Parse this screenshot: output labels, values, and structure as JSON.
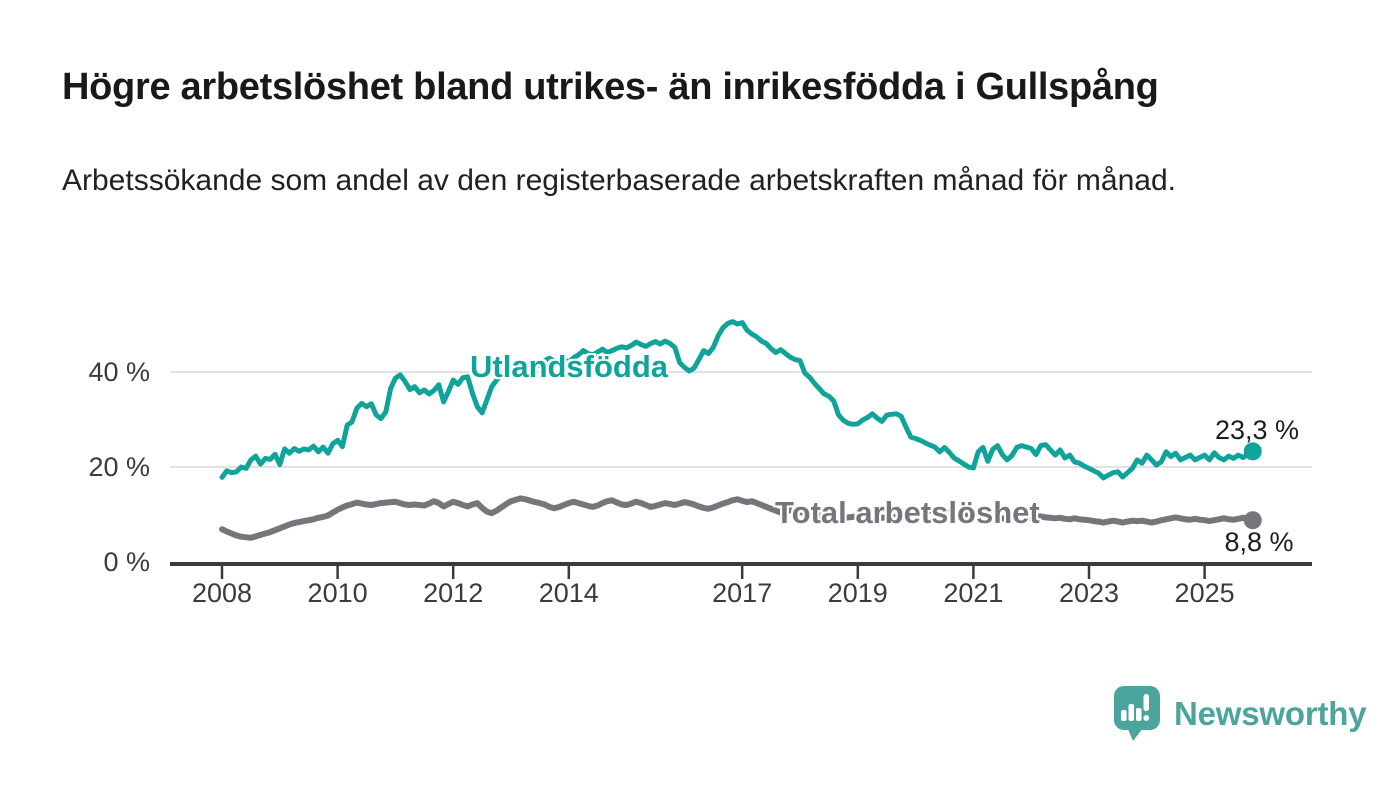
{
  "chart_data": {
    "type": "line",
    "title": "Högre arbetslöshet bland utrikes- än inrikesfödda i Gullspång",
    "subtitle": "Arbetssökande som andel av den registerbaserade arbetskraften månad för månad.",
    "unit": "%",
    "grid": "horizontal",
    "legend_position": "inline-labels",
    "x_axis": {
      "start_year": 2008,
      "points_per_year": 12,
      "end_point": "2025-11",
      "tick_years": [
        2008,
        2010,
        2012,
        2014,
        2017,
        2019,
        2021,
        2023,
        2025
      ],
      "tick_labels": [
        "2008",
        "2010",
        "2012",
        "2014",
        "2017",
        "2019",
        "2021",
        "2023",
        "2025"
      ]
    },
    "y_axis": {
      "range": [
        0,
        55
      ],
      "ticks": [
        {
          "value": 0,
          "label": "0 %"
        },
        {
          "value": 20,
          "label": "20 %"
        },
        {
          "value": 40,
          "label": "40 %"
        }
      ]
    },
    "series": [
      {
        "name": "Utlandsfödda",
        "color": "#0fa39a",
        "end_label": "23,3 %",
        "end_value": 23.3,
        "values": [
          17.8,
          19.2,
          18.8,
          19.0,
          20.0,
          19.7,
          21.5,
          22.3,
          20.6,
          21.8,
          21.6,
          22.7,
          20.5,
          23.8,
          22.9,
          23.9,
          23.3,
          23.8,
          23.6,
          24.4,
          23.2,
          24.2,
          22.9,
          24.9,
          25.6,
          24.3,
          28.8,
          29.5,
          32.4,
          33.4,
          32.7,
          33.3,
          31.0,
          30.2,
          31.6,
          36.5,
          38.7,
          39.4,
          38.0,
          36.3,
          36.9,
          35.6,
          36.2,
          35.4,
          36.1,
          37.3,
          33.7,
          35.9,
          38.3,
          37.4,
          38.8,
          39.0,
          35.5,
          32.7,
          31.4,
          34.1,
          36.9,
          38.3,
          39.4,
          39.7,
          40.4,
          40.8,
          40.2,
          41.3,
          41.6,
          41.0,
          41.8,
          42.4,
          42.9,
          42.3,
          42.0,
          42.5,
          42.1,
          43.0,
          43.6,
          44.5,
          43.9,
          43.6,
          44.2,
          44.8,
          44.1,
          44.5,
          45.0,
          45.3,
          45.1,
          45.6,
          46.3,
          45.8,
          45.4,
          46.0,
          46.4,
          45.9,
          46.5,
          46.0,
          45.2,
          42.0,
          41.0,
          40.2,
          40.8,
          42.6,
          44.5,
          43.9,
          45.2,
          47.6,
          49.3,
          50.2,
          50.6,
          50.1,
          50.4,
          48.8,
          48.0,
          47.4,
          46.5,
          46.0,
          44.9,
          44.1,
          44.7,
          43.9,
          43.1,
          42.6,
          42.4,
          39.8,
          38.9,
          37.6,
          36.5,
          35.4,
          34.9,
          33.9,
          31.0,
          29.8,
          29.2,
          29.0,
          29.1,
          29.9,
          30.4,
          31.2,
          30.3,
          29.6,
          30.9,
          31.1,
          31.2,
          30.7,
          28.4,
          26.3,
          26.0,
          25.6,
          25.1,
          24.6,
          24.2,
          23.2,
          24.1,
          23.1,
          21.9,
          21.3,
          20.6,
          20.0,
          19.8,
          23.2,
          24.1,
          21.2,
          23.7,
          24.5,
          22.6,
          21.5,
          22.4,
          24.1,
          24.5,
          24.2,
          23.9,
          22.6,
          24.5,
          24.7,
          23.6,
          22.5,
          23.6,
          21.9,
          22.5,
          21.1,
          20.8,
          20.2,
          19.7,
          19.2,
          18.7,
          17.7,
          18.3,
          18.8,
          19.0,
          17.9,
          18.8,
          19.7,
          21.5,
          20.8,
          22.5,
          21.5,
          20.4,
          21.1,
          23.2,
          22.2,
          22.9,
          21.5,
          22.0,
          22.5,
          21.5,
          22.0,
          22.5,
          21.5,
          23.0,
          22.0,
          21.5,
          22.3,
          21.8,
          22.5,
          22.0,
          22.7,
          23.3
        ]
      },
      {
        "name": "Total arbetslöshet",
        "color": "#75757b",
        "end_label": "8,8 %",
        "end_value": 8.8,
        "values": [
          6.9,
          6.4,
          6.0,
          5.6,
          5.3,
          5.2,
          5.1,
          5.4,
          5.7,
          6.0,
          6.3,
          6.7,
          7.1,
          7.5,
          7.9,
          8.2,
          8.4,
          8.6,
          8.8,
          9.0,
          9.3,
          9.5,
          9.8,
          10.4,
          11.0,
          11.5,
          11.9,
          12.2,
          12.5,
          12.3,
          12.1,
          12.0,
          12.2,
          12.4,
          12.5,
          12.6,
          12.7,
          12.4,
          12.1,
          12.0,
          12.1,
          12.0,
          11.9,
          12.3,
          12.8,
          12.4,
          11.7,
          12.2,
          12.7,
          12.4,
          12.0,
          11.7,
          12.1,
          12.4,
          11.4,
          10.6,
          10.3,
          10.8,
          11.5,
          12.2,
          12.8,
          13.1,
          13.4,
          13.2,
          12.9,
          12.6,
          12.4,
          12.1,
          11.6,
          11.3,
          11.6,
          12.0,
          12.4,
          12.7,
          12.4,
          12.1,
          11.8,
          11.6,
          11.9,
          12.4,
          12.8,
          13.0,
          12.5,
          12.1,
          12.0,
          12.3,
          12.7,
          12.4,
          12.0,
          11.6,
          11.8,
          12.1,
          12.4,
          12.2,
          12.0,
          12.3,
          12.6,
          12.4,
          12.1,
          11.7,
          11.4,
          11.2,
          11.5,
          11.9,
          12.3,
          12.6,
          13.0,
          13.2,
          12.9,
          12.6,
          12.8,
          12.4,
          12.0,
          11.6,
          11.2,
          10.8,
          10.4,
          10.6,
          10.9,
          10.7,
          10.5,
          10.3,
          10.1,
          10.0,
          9.8,
          9.7,
          9.6,
          9.5,
          9.4,
          9.3,
          9.4,
          9.5,
          9.6,
          9.5,
          9.4,
          9.3,
          9.2,
          9.3,
          9.4,
          9.5,
          9.4,
          9.3,
          9.5,
          9.8,
          10.0,
          10.2,
          10.5,
          10.8,
          10.9,
          10.8,
          10.6,
          10.5,
          10.4,
          10.2,
          10.0,
          9.9,
          9.8,
          9.7,
          9.6,
          9.5,
          9.4,
          9.3,
          9.2,
          9.1,
          9.0,
          9.1,
          9.2,
          9.1,
          9.6,
          9.5,
          9.6,
          9.4,
          9.3,
          9.2,
          9.3,
          9.1,
          9.0,
          9.2,
          9.0,
          8.9,
          8.8,
          8.6,
          8.5,
          8.3,
          8.5,
          8.7,
          8.5,
          8.3,
          8.5,
          8.7,
          8.6,
          8.7,
          8.5,
          8.3,
          8.5,
          8.8,
          9.0,
          9.2,
          9.4,
          9.2,
          9.0,
          8.9,
          9.1,
          8.9,
          8.8,
          8.6,
          8.8,
          9.0,
          9.2,
          9.0,
          8.9,
          9.1,
          9.3,
          9.0,
          8.8
        ]
      }
    ],
    "colors": {
      "grid": "#d9d9d9",
      "axis": "#3b3b3b",
      "tick_text": "#3b3b3b"
    }
  },
  "footer": {
    "brand": "Newsworthy",
    "brand_color": "#4ba59d"
  }
}
